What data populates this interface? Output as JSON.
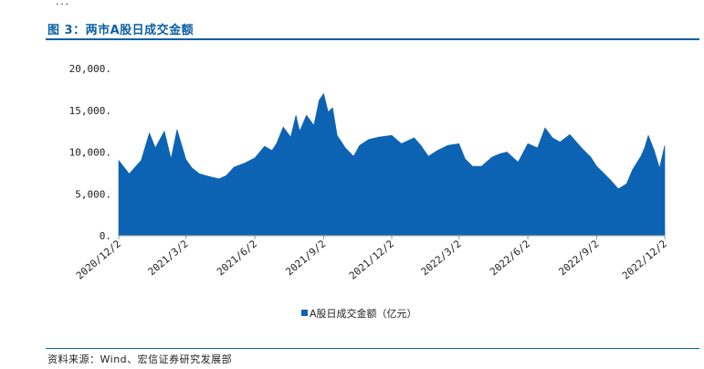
{
  "header_fragment": "…",
  "figure_title": "图 3：两市A股日成交金额",
  "source": "资料来源：Wind、宏信证券研究发展部",
  "colors": {
    "accent": "#0b5fa5",
    "series": "#0d63b3"
  },
  "chart_data": {
    "type": "area",
    "title": "",
    "xlabel": "",
    "ylabel": "",
    "ylim": [
      0,
      20000
    ],
    "yticks": [
      0,
      5000,
      10000,
      15000,
      20000
    ],
    "ytick_labels": [
      "0.",
      "5,000.",
      "10,000.",
      "15,000.",
      "20,000."
    ],
    "xlim": [
      "2020-12-02",
      "2022-12-02"
    ],
    "xticks": [
      "2020-12-02",
      "2021-03-02",
      "2021-06-02",
      "2021-09-02",
      "2021-12-02",
      "2022-03-02",
      "2022-06-02",
      "2022-09-02",
      "2022-12-02"
    ],
    "xtick_labels": [
      "2020/12/2",
      "2021/3/2",
      "2021/6/2",
      "2021/9/2",
      "2021/12/2",
      "2022/3/2",
      "2022/6/2",
      "2022/9/2",
      "2022/12/2"
    ],
    "grid": false,
    "legend_position": "bottom",
    "series": [
      {
        "name": "A股日成交金额（亿元）",
        "x": [
          "2020-12-02",
          "2020-12-16",
          "2021-01-01",
          "2021-01-12",
          "2021-01-20",
          "2021-02-01",
          "2021-02-10",
          "2021-02-18",
          "2021-03-02",
          "2021-03-10",
          "2021-03-20",
          "2021-04-01",
          "2021-04-15",
          "2021-04-25",
          "2021-05-05",
          "2021-05-20",
          "2021-06-02",
          "2021-06-15",
          "2021-06-25",
          "2021-07-01",
          "2021-07-10",
          "2021-07-20",
          "2021-07-27",
          "2021-08-01",
          "2021-08-10",
          "2021-08-20",
          "2021-08-27",
          "2021-09-02",
          "2021-09-08",
          "2021-09-14",
          "2021-09-20",
          "2021-10-01",
          "2021-10-12",
          "2021-10-20",
          "2021-11-01",
          "2021-11-15",
          "2021-12-02",
          "2021-12-15",
          "2022-01-01",
          "2022-01-10",
          "2022-01-20",
          "2022-02-01",
          "2022-02-15",
          "2022-03-02",
          "2022-03-10",
          "2022-03-20",
          "2022-04-01",
          "2022-04-15",
          "2022-04-26",
          "2022-05-05",
          "2022-05-20",
          "2022-06-02",
          "2022-06-15",
          "2022-06-25",
          "2022-07-05",
          "2022-07-15",
          "2022-07-28",
          "2022-08-05",
          "2022-08-15",
          "2022-08-25",
          "2022-09-02",
          "2022-09-10",
          "2022-09-20",
          "2022-10-01",
          "2022-10-12",
          "2022-10-20",
          "2022-10-31",
          "2022-11-05",
          "2022-11-10",
          "2022-11-18",
          "2022-11-25",
          "2022-12-02"
        ],
        "values": [
          9000,
          7400,
          9000,
          12300,
          10500,
          12500,
          9200,
          12700,
          9100,
          8100,
          7400,
          7100,
          6800,
          7200,
          8200,
          8700,
          9300,
          10700,
          10200,
          11000,
          13000,
          11800,
          14400,
          12500,
          14400,
          13200,
          16200,
          17000,
          14800,
          15300,
          12000,
          10500,
          9500,
          10800,
          11500,
          11800,
          12000,
          11000,
          11700,
          10800,
          9500,
          10200,
          10800,
          11000,
          9200,
          8300,
          8300,
          9400,
          9800,
          10000,
          8800,
          11000,
          10500,
          12900,
          11700,
          11200,
          12100,
          11300,
          10300,
          9400,
          8300,
          7600,
          6700,
          5600,
          6200,
          7900,
          9500,
          10500,
          12000,
          10200,
          8100,
          10800
        ]
      }
    ]
  }
}
